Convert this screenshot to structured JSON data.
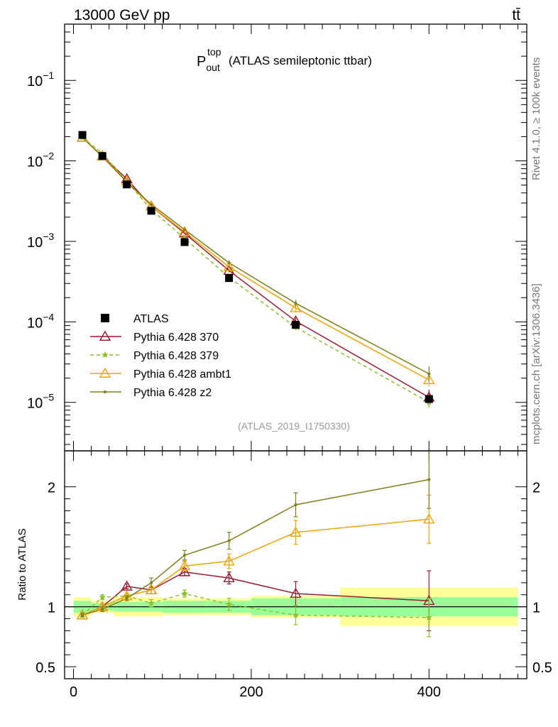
{
  "header": {
    "energy_label": "13000 GeV pp",
    "process_label": "tt̄"
  },
  "side_text": {
    "rivet": "Rivet 4.1.0, ≥ 100k events",
    "mcplots": "mcplots.cern.ch [arXiv:1306.3436]"
  },
  "chart_data": {
    "type": "line",
    "title_main": "P",
    "title_sup": "top",
    "title_sub": "out",
    "title_rest": "(ATLAS semileptonic ttbar)",
    "analysis_label": "(ATLAS_2019_I1750330)",
    "ylabel_ratio": "Ratio to ATLAS",
    "xlim": [
      -10,
      510
    ],
    "ylim_main": [
      2.5e-06,
      0.5
    ],
    "ylim_ratio": [
      0.4,
      2.3
    ],
    "x_ticks": [
      {
        "value": 0,
        "label": "0"
      },
      {
        "value": 200,
        "label": "200"
      },
      {
        "value": 400,
        "label": "400"
      }
    ],
    "y_ticks_main": [
      {
        "value": 0.1,
        "mant": "10",
        "exp": "−1"
      },
      {
        "value": 0.01,
        "mant": "10",
        "exp": "−2"
      },
      {
        "value": 0.001,
        "mant": "10",
        "exp": "−3"
      },
      {
        "value": 0.0001,
        "mant": "10",
        "exp": "−4"
      },
      {
        "value": 1e-05,
        "mant": "10",
        "exp": "−5"
      }
    ],
    "y_ticks_ratio": [
      {
        "value": 0.5,
        "label": "0.5"
      },
      {
        "value": 1,
        "label": "1"
      },
      {
        "value": 2,
        "label": "2"
      }
    ],
    "bins": [
      {
        "lo": 0,
        "hi": 20
      },
      {
        "lo": 20,
        "hi": 45
      },
      {
        "lo": 45,
        "hi": 75
      },
      {
        "lo": 75,
        "hi": 100
      },
      {
        "lo": 100,
        "hi": 150
      },
      {
        "lo": 150,
        "hi": 200
      },
      {
        "lo": 200,
        "hi": 300
      },
      {
        "lo": 300,
        "hi": 500
      }
    ],
    "x": [
      10,
      32.5,
      60,
      87.5,
      125,
      175,
      250,
      400
    ],
    "data": {
      "name": "ATLAS",
      "y": [
        0.021,
        0.0115,
        0.0051,
        0.0024,
        0.00098,
        0.00035,
        9.2e-05,
        1.1e-05
      ],
      "band_inner": [
        0.05,
        0.03,
        0.04,
        0.04,
        0.05,
        0.05,
        0.07,
        0.08
      ],
      "band_outer": [
        0.08,
        0.05,
        0.08,
        0.08,
        0.07,
        0.07,
        0.09,
        0.16
      ]
    },
    "series": [
      {
        "name": "Pythia 6.428 370",
        "color": "#9a1b2f",
        "marker": "triangle-open",
        "dashed": false,
        "ratio": [
          0.93,
          1.0,
          1.17,
          1.14,
          1.29,
          1.24,
          1.11,
          1.05
        ],
        "ratio_err": [
          0.015,
          0.02,
          0.02,
          0.03,
          0.03,
          0.05,
          0.1,
          0.25
        ]
      },
      {
        "name": "Pythia 6.428 379",
        "color": "#8dbf2e",
        "marker": "star",
        "dashed": true,
        "ratio": [
          0.93,
          1.08,
          1.09,
          1.03,
          1.11,
          1.02,
          0.93,
          0.91
        ],
        "ratio_err": [
          0.015,
          0.02,
          0.02,
          0.03,
          0.03,
          0.05,
          0.08,
          0.16
        ]
      },
      {
        "name": "Pythia 6.428 ambt1",
        "color": "#f0a30a",
        "marker": "triangle-open",
        "dashed": false,
        "ratio": [
          0.93,
          1.0,
          1.09,
          1.14,
          1.34,
          1.38,
          1.62,
          1.73
        ],
        "ratio_err": [
          0.015,
          0.02,
          0.02,
          0.03,
          0.04,
          0.06,
          0.1,
          0.2
        ]
      },
      {
        "name": "Pythia 6.428 z2",
        "color": "#7f7f1a",
        "marker": "dot",
        "dashed": false,
        "ratio": [
          0.93,
          0.98,
          1.07,
          1.2,
          1.43,
          1.55,
          1.85,
          2.06
        ],
        "ratio_err": [
          0.015,
          0.02,
          0.02,
          0.04,
          0.04,
          0.07,
          0.1,
          0.24
        ]
      }
    ]
  }
}
